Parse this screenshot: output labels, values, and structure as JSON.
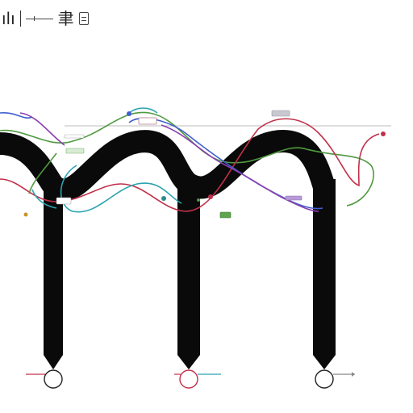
{
  "toolbar": {
    "glyph_left": "ılı",
    "glyph_right": "⾀"
  },
  "colors": {
    "trunk": "#0a0a0a",
    "red": "#c0304a",
    "green": "#4f9a3f",
    "blue": "#3f5fd0",
    "teal": "#2aa3b0",
    "purple": "#8a3fb0",
    "guide": "#bdbdbd"
  },
  "icons": [
    "bar-glyph-icon",
    "line-tool-icon",
    "character-icon",
    "document-icon"
  ]
}
